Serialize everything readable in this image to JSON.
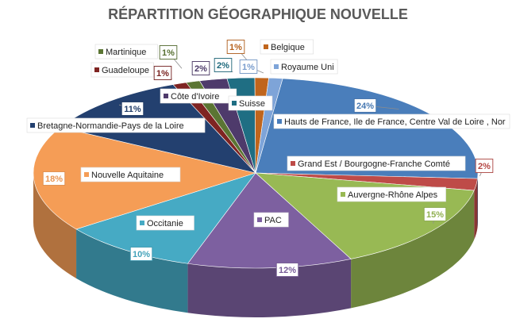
{
  "chart_data": {
    "type": "pie",
    "title": "RÉPARTITION GÉOGRAPHIQUE NOUVELLE",
    "slices": [
      {
        "label": "Hauts de France, Ile de France, Centre Val de Loire , Normandie",
        "value": 24,
        "display": "24%",
        "color": "#4a7ebb"
      },
      {
        "label": "Grand Est / Bourgogne-Franche Comté",
        "value": 2,
        "display": "2%",
        "color": "#be4b48"
      },
      {
        "label": "Auvergne-Rhône Alpes",
        "value": 15,
        "display": "15%",
        "color": "#98b954"
      },
      {
        "label": "PACA",
        "value": 12,
        "display": "12%",
        "color": "#7d60a0"
      },
      {
        "label": "Occitanie",
        "value": 10,
        "display": "10%",
        "color": "#46aac4"
      },
      {
        "label": "Nouvelle Aquitaine",
        "value": 18,
        "display": "18%",
        "color": "#f59d56"
      },
      {
        "label": "Bretagne-Normandie-Pays de la Loire",
        "value": 11,
        "display": "11%",
        "color": "#23406f"
      },
      {
        "label": "Guadeloupe",
        "value": 1,
        "display": "1%",
        "color": "#7f2422"
      },
      {
        "label": "Martinique",
        "value": 1,
        "display": "1%",
        "color": "#5b7533"
      },
      {
        "label": "Côte d'Ivoire",
        "value": 2,
        "display": "2%",
        "color": "#4e3a6b"
      },
      {
        "label": "Suisse",
        "value": 2,
        "display": "2%",
        "color": "#1f6e83"
      },
      {
        "label": "Belgique",
        "value": 1,
        "display": "1%",
        "color": "#c0651c"
      },
      {
        "label": "Royaume Uni",
        "value": 1,
        "display": "1%",
        "color": "#7ea4d8"
      }
    ],
    "legend": "none",
    "data_labels": "percent"
  }
}
